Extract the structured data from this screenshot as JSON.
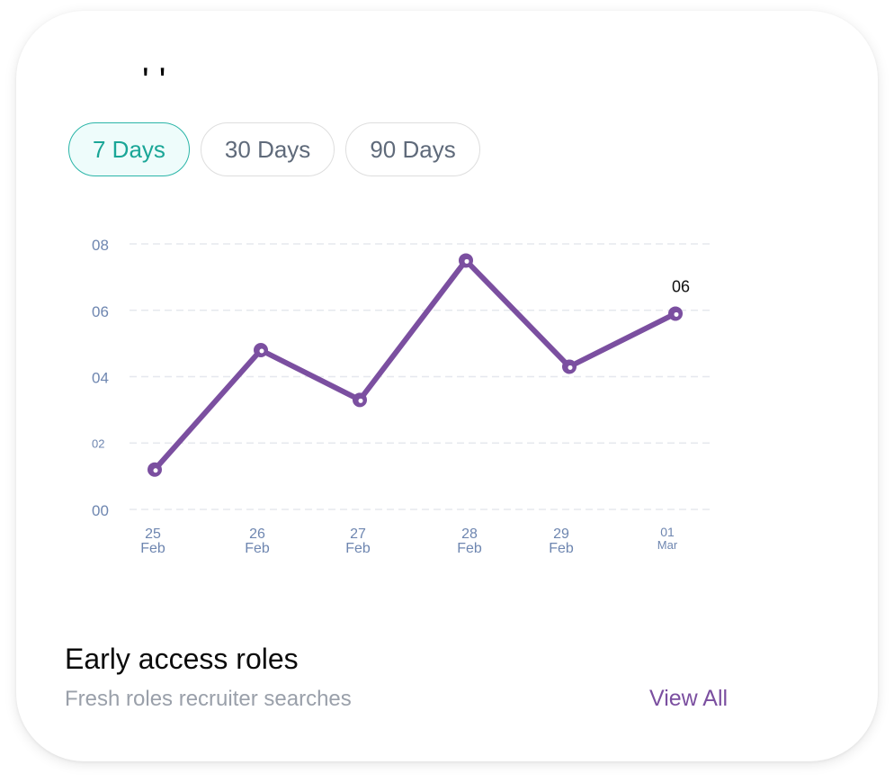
{
  "header": {
    "cut_title": "' '"
  },
  "tabs": [
    {
      "label": "7 Days",
      "active": true
    },
    {
      "label": "30 Days",
      "active": false
    },
    {
      "label": "90 Days",
      "active": false
    }
  ],
  "chart_data": {
    "type": "line",
    "categories": [
      "25 Feb",
      "26 Feb",
      "27 Feb",
      "28 Feb",
      "29 Feb",
      "01 Mar"
    ],
    "category_day": [
      "25",
      "26",
      "27",
      "28",
      "29",
      "01"
    ],
    "category_month": [
      "Feb",
      "Feb",
      "Feb",
      "Feb",
      "Feb",
      "Mar"
    ],
    "values": [
      1.2,
      4.8,
      3.3,
      7.5,
      4.3,
      5.9
    ],
    "ylim": [
      0,
      8
    ],
    "yticks": [
      0,
      2,
      4,
      6,
      8
    ],
    "ytick_labels": [
      "00",
      "02",
      "04",
      "06",
      "08"
    ],
    "annotation": {
      "index": 5,
      "label": "06"
    },
    "grid": true,
    "line_color": "#7b4fa0",
    "axis_text_color": "#6e86b0"
  },
  "section": {
    "title": "Early access roles",
    "subtitle": "Fresh roles recruiter searches",
    "view_all": "View All"
  }
}
